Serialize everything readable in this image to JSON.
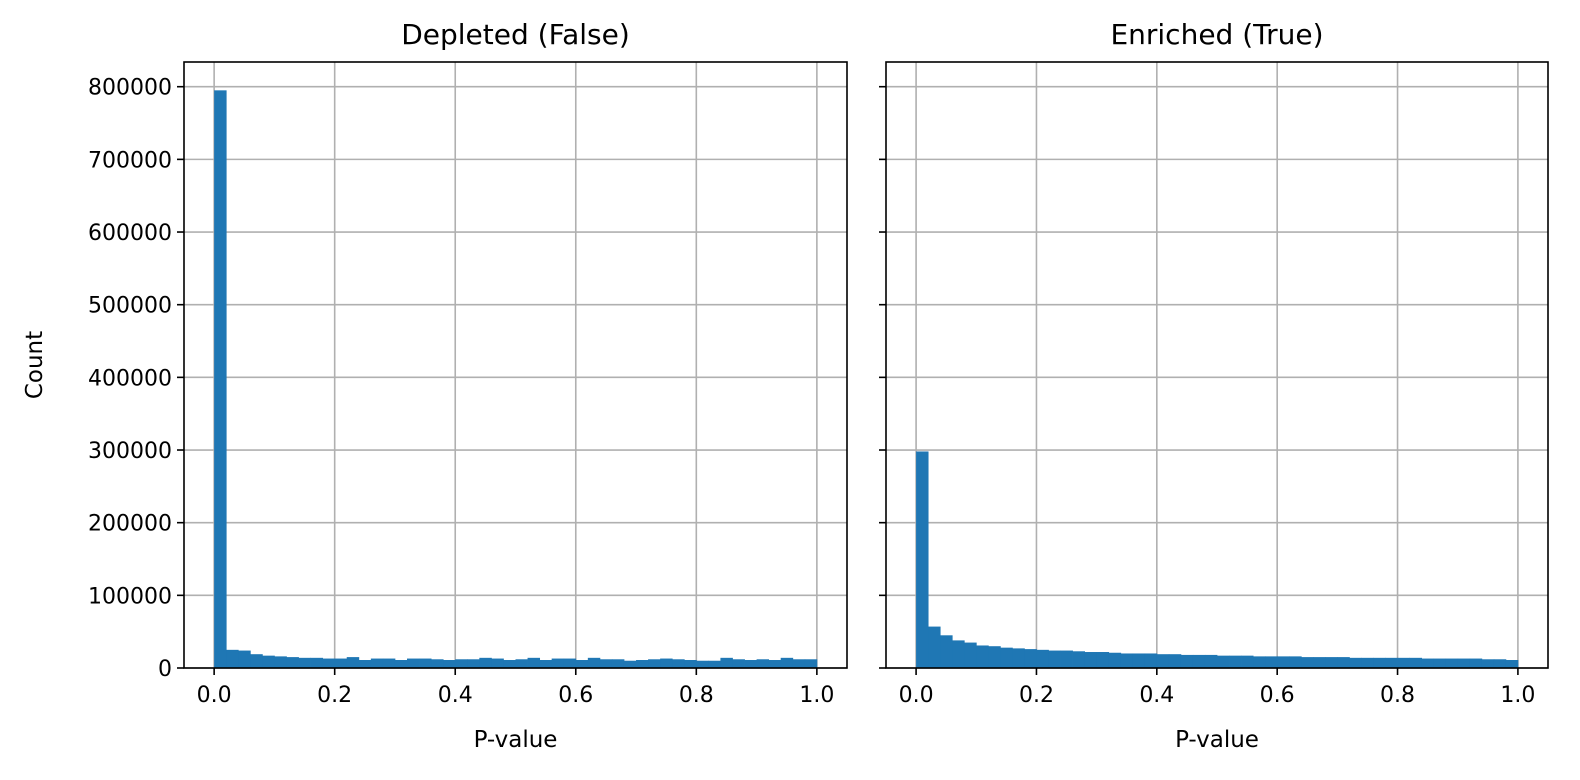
{
  "chart_data": [
    {
      "type": "bar",
      "title": "Depleted (False)",
      "xlabel": "P-value",
      "ylabel": "Count",
      "xlim": [
        -0.05,
        1.05
      ],
      "ylim": [
        0,
        834000
      ],
      "xticks": [
        "0.0",
        "0.2",
        "0.4",
        "0.6",
        "0.8",
        "1.0"
      ],
      "yticks": [
        "0",
        "100000",
        "200000",
        "300000",
        "400000",
        "500000",
        "600000",
        "700000",
        "800000"
      ],
      "grid": true,
      "color": "#1f77b4",
      "bin_range": [
        0,
        1
      ],
      "bins": 50,
      "values": [
        795000,
        25000,
        24000,
        19000,
        17000,
        16000,
        15000,
        14000,
        14000,
        13000,
        13000,
        15000,
        11000,
        13000,
        13000,
        11000,
        13000,
        13000,
        12000,
        11000,
        12000,
        12000,
        14000,
        13000,
        11000,
        12000,
        14000,
        11000,
        13000,
        13000,
        11000,
        14000,
        12000,
        12000,
        10000,
        11000,
        12000,
        13000,
        12000,
        11000,
        10000,
        10000,
        14000,
        12000,
        11000,
        12000,
        11000,
        14000,
        12000,
        12000
      ]
    },
    {
      "type": "bar",
      "title": "Enriched (True)",
      "xlabel": "P-value",
      "ylabel": "",
      "xlim": [
        -0.05,
        1.05
      ],
      "ylim": [
        0,
        834000
      ],
      "xticks": [
        "0.0",
        "0.2",
        "0.4",
        "0.6",
        "0.8",
        "1.0"
      ],
      "yticks": [],
      "grid": true,
      "color": "#1f77b4",
      "bin_range": [
        0,
        1
      ],
      "bins": 50,
      "values": [
        298000,
        57000,
        45000,
        38000,
        35000,
        31000,
        30000,
        28000,
        27000,
        26000,
        25000,
        24000,
        24000,
        23000,
        22000,
        22000,
        21000,
        20000,
        20000,
        20000,
        19000,
        19000,
        18000,
        18000,
        18000,
        17000,
        17000,
        17000,
        16000,
        16000,
        16000,
        16000,
        15000,
        15000,
        15000,
        15000,
        14000,
        14000,
        14000,
        14000,
        14000,
        14000,
        13000,
        13000,
        13000,
        13000,
        13000,
        12000,
        12000,
        11000
      ]
    }
  ]
}
